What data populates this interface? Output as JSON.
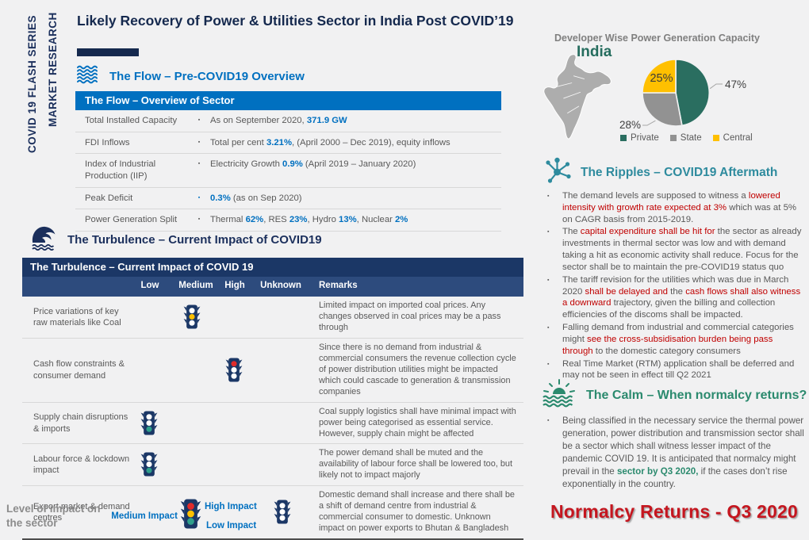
{
  "sidebar": {
    "line1": "COVID 19 FLASH SERIES",
    "line2": "MARKET RESEARCH"
  },
  "title": "Likely Recovery of Power & Utilities Sector in India Post COVID’19",
  "colors": {
    "navy": "#1b2f5c",
    "blue_accent": "#0070c0",
    "turb_header": "#1b3766",
    "turb_subheader": "#2d4b7d",
    "teal_heading": "#2e8b9e",
    "green_heading": "#2b8a6e",
    "red_highlight": "#c00000",
    "banner_red": "#c5161f",
    "light_body": "#1b3766",
    "light_red": "#e02b2b",
    "light_amber": "#ffc000",
    "light_green": "#2fa08c"
  },
  "flow": {
    "heading": "The Flow – Pre-COVID19 Overview",
    "table_title": "The Flow – Overview of Sector",
    "rows": [
      {
        "label": "Total Installed Capacity",
        "segments": [
          {
            "t": "As on  September 2020, "
          },
          {
            "t": "371.9 GW",
            "s": "hl"
          }
        ]
      },
      {
        "label": "FDI Inflows",
        "segments": [
          {
            "t": "Total per cent "
          },
          {
            "t": "3.21%",
            "s": "hl"
          },
          {
            "t": ", (April 2000 – Dec 2019), equity inflows"
          }
        ]
      },
      {
        "label": "Index of Industrial Production (IIP)",
        "segments": [
          {
            "t": "Electricity Growth "
          },
          {
            "t": "0.9%",
            "s": "hl"
          },
          {
            "t": " (April 2019 – January 2020)"
          }
        ]
      },
      {
        "label": "Peak Deficit",
        "bullet_blue": true,
        "segments": [
          {
            "t": "0.3%",
            "s": "hl"
          },
          {
            "t": " (as on Sep 2020)"
          }
        ]
      },
      {
        "label": "Power Generation Split",
        "segments": [
          {
            "t": "Thermal "
          },
          {
            "t": "62%",
            "s": "hl"
          },
          {
            "t": ", RES "
          },
          {
            "t": "23%",
            "s": "hl"
          },
          {
            "t": ", Hydro "
          },
          {
            "t": "13%",
            "s": "hl"
          },
          {
            "t": ", Nuclear "
          },
          {
            "t": "2%",
            "s": "hl"
          }
        ]
      }
    ]
  },
  "turbulence": {
    "heading": "The Turbulence – Current Impact of COVID19",
    "table_title": "The Turbulence – Current Impact of COVID 19",
    "columns": [
      "Low",
      "Medium",
      "High",
      "Unknown",
      "Remarks"
    ],
    "rows": [
      {
        "label": "Price variations of key raw materials like Coal",
        "level": "Medium",
        "remarks": "Limited impact on imported coal prices. Any changes observed in coal prices may be a pass through"
      },
      {
        "label": "Cash flow constraints & consumer demand",
        "level": "High",
        "remarks": "Since there is no demand from industrial & commercial consumers the revenue collection cycle of power distribution utilities might be impacted which could cascade to generation & transmission companies"
      },
      {
        "label": "Supply chain disruptions & imports",
        "level": "Low",
        "remarks": "Coal supply logistics shall have minimal impact with power being categorised as essential service. However, supply chain might be affected"
      },
      {
        "label": "Labour force & lockdown impact",
        "level": "Low",
        "remarks": "The power demand shall be muted and the availability of labour force shall be lowered too, but likely not to impact majorly"
      },
      {
        "label": "Export market & demand centres",
        "level": "Unknown",
        "remarks": "Domestic demand shall increase and there shall be a shift of demand centre from industrial & commercial consumer to domestic. Unknown impact on power exports to Bhutan & Bangladesh"
      }
    ],
    "legend": {
      "caption": "Level of impact on the sector",
      "high": "High Impact",
      "medium": "Medium Impact",
      "low": "Low  Impact"
    }
  },
  "capacity": {
    "title": "Developer Wise Power Generation Capacity",
    "region": "India"
  },
  "chart_data": {
    "type": "pie",
    "title": "Developer Wise Power Generation Capacity",
    "labels": [
      "Private",
      "State",
      "Central"
    ],
    "values": [
      47,
      28,
      25
    ],
    "display": [
      "47%",
      "28%",
      "25%"
    ],
    "unit": "%",
    "colors": [
      "#2a6e60",
      "#929292",
      "#ffc000"
    ],
    "legend_position": "bottom"
  },
  "ripples": {
    "heading": "The Ripples – COVID19 Aftermath",
    "bullets": [
      [
        {
          "t": "The demand levels are supposed to witness a "
        },
        {
          "t": "lowered intensity with growth rate expected at 3%",
          "s": "red"
        },
        {
          "t": " which was at 5% on CAGR basis from 2015-2019."
        }
      ],
      [
        {
          "t": "The "
        },
        {
          "t": "capital expenditure shall be hit for",
          "s": "red"
        },
        {
          "t": " the sector as already investments in thermal sector was low and with demand taking a hit as economic activity shall reduce. Focus for the sector shall be to maintain the pre-COVID19 status quo"
        }
      ],
      [
        {
          "t": "The tariff revision for the utilities which was due in March 2020 "
        },
        {
          "t": "shall be delayed and",
          "s": "red"
        },
        {
          "t": " the "
        },
        {
          "t": "cash flows shall also witness a downward",
          "s": "red"
        },
        {
          "t": " trajectory, given the billing and collection efficiencies of the discoms shall be impacted."
        }
      ],
      [
        {
          "t": "Falling demand from industrial and commercial categories might "
        },
        {
          "t": "see the cross-subsidisation burden being pass through",
          "s": "red"
        },
        {
          "t": " to the domestic category consumers"
        }
      ],
      [
        {
          "t": "Real Time Market (RTM) application shall be deferred and may not be seen in effect till Q2 2021"
        }
      ]
    ]
  },
  "calm": {
    "heading": "The Calm – When normalcy returns?",
    "bullets": [
      [
        {
          "t": "Being classified in the necessary service the thermal power generation, power distribution and transmission sector shall be a sector which shall witness lesser impact of the pandemic COVID 19. It is anticipated that normalcy might prevail in the "
        },
        {
          "t": "sector by Q3 2020,",
          "s": "teal"
        },
        {
          "t": " if the cases don’t rise exponentially in the country."
        }
      ]
    ]
  },
  "banner": "Normalcy Returns -  Q3 2020"
}
